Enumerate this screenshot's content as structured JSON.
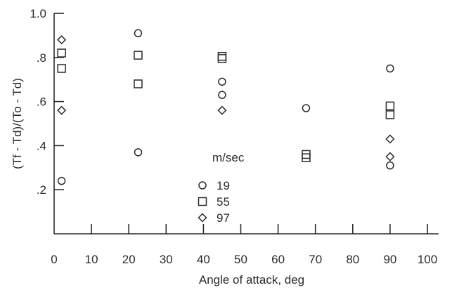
{
  "chart_data": {
    "type": "scatter",
    "title": "",
    "xlabel": "Angle of attack, deg",
    "ylabel": "(Tf - Td)/(To - Td)",
    "xlim": [
      0,
      100
    ],
    "ylim": [
      0,
      1.0
    ],
    "x_ticks": [
      0,
      10,
      20,
      30,
      40,
      50,
      60,
      70,
      80,
      90,
      100
    ],
    "x_tick_labels": [
      "0",
      "10",
      "20",
      "30",
      "40",
      "50",
      "60",
      "70",
      "80",
      "90",
      "100"
    ],
    "y_ticks": [
      0.2,
      0.4,
      0.6,
      0.8,
      1.0
    ],
    "y_tick_labels": [
      ".2",
      ".4",
      ".6",
      ".8",
      "1.0"
    ],
    "grid": false,
    "legend": {
      "title": "m/sec",
      "placement": "lower-center"
    },
    "series": [
      {
        "name": "19",
        "marker": "circle",
        "points": [
          {
            "x": 2,
            "y": 0.24
          },
          {
            "x": 22.5,
            "y": 0.91
          },
          {
            "x": 22.5,
            "y": 0.37
          },
          {
            "x": 45,
            "y": 0.69
          },
          {
            "x": 45,
            "y": 0.63
          },
          {
            "x": 67.5,
            "y": 0.57
          },
          {
            "x": 90,
            "y": 0.75
          },
          {
            "x": 90,
            "y": 0.31
          }
        ]
      },
      {
        "name": "55",
        "marker": "square",
        "points": [
          {
            "x": 2,
            "y": 0.82
          },
          {
            "x": 2,
            "y": 0.75
          },
          {
            "x": 22.5,
            "y": 0.81
          },
          {
            "x": 22.5,
            "y": 0.68
          },
          {
            "x": 45,
            "y": 0.805
          },
          {
            "x": 45,
            "y": 0.795
          },
          {
            "x": 67.5,
            "y": 0.36
          },
          {
            "x": 67.5,
            "y": 0.345
          },
          {
            "x": 90,
            "y": 0.58
          },
          {
            "x": 90,
            "y": 0.54
          }
        ]
      },
      {
        "name": "97",
        "marker": "diamond",
        "points": [
          {
            "x": 2,
            "y": 0.88
          },
          {
            "x": 2,
            "y": 0.56
          },
          {
            "x": 45,
            "y": 0.56
          },
          {
            "x": 90,
            "y": 0.43
          },
          {
            "x": 90,
            "y": 0.35
          }
        ]
      }
    ]
  }
}
